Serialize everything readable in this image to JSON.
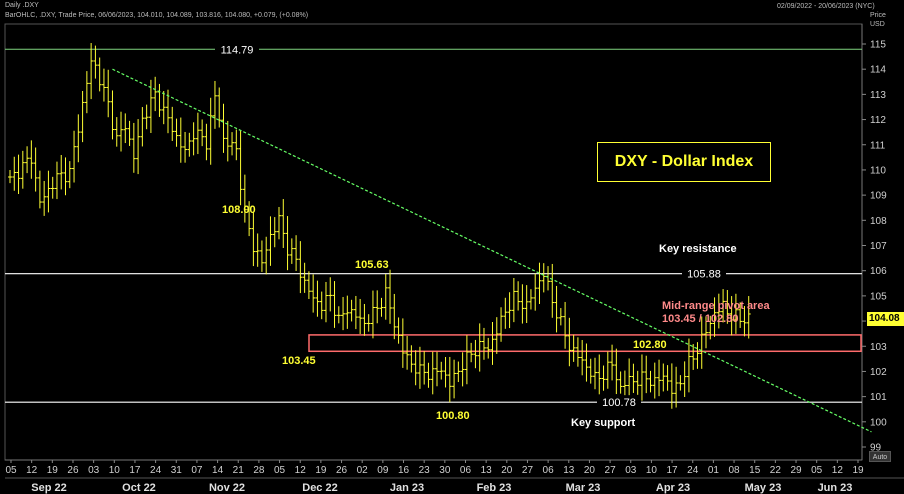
{
  "header": {
    "chart_label": "Daily .DXY",
    "study_line": "BarOHLC, .DXY, Trade Price, 06/06/2023, 104.010, 104.089, 103.816, 104.080, +0.079, (+0.08%)",
    "date_range": "02/09/2022 - 20/06/2023 (NYC)",
    "price_label": "Price",
    "currency_label": "USD",
    "auto_button": "Auto",
    "last_price": "104.08"
  },
  "chart_data": {
    "type": "ohlc",
    "title": "DXY - Dollar Index",
    "ylim": [
      98.5,
      115.5
    ],
    "y_ticks": [
      99,
      100,
      101,
      102,
      103,
      104,
      105,
      106,
      107,
      108,
      109,
      110,
      111,
      112,
      113,
      114,
      115
    ],
    "x_ticks": [
      "05",
      "12",
      "19",
      "26",
      "03",
      "10",
      "17",
      "24",
      "31",
      "07",
      "14",
      "21",
      "28",
      "05",
      "12",
      "19",
      "26",
      "02",
      "09",
      "16",
      "23",
      "30",
      "06",
      "13",
      "20",
      "27",
      "06",
      "13",
      "20",
      "27",
      "03",
      "10",
      "17",
      "24",
      "01",
      "08",
      "15",
      "22",
      "29",
      "05",
      "12",
      "19"
    ],
    "months": [
      "Sep 22",
      "Oct 22",
      "Nov 22",
      "Dec 22",
      "Jan 23",
      "Feb 23",
      "Mar 23",
      "Apr 23",
      "May 23",
      "Jun 23"
    ],
    "closes_anchor": [
      [
        0,
        109.6
      ],
      [
        5,
        110.5
      ],
      [
        7,
        108.7
      ],
      [
        11,
        109.7
      ],
      [
        14,
        109.9
      ],
      [
        17,
        112.6
      ],
      [
        19,
        114.3
      ],
      [
        20,
        114.1
      ],
      [
        23,
        112.6
      ],
      [
        25,
        111.2
      ],
      [
        27,
        111.8
      ],
      [
        29,
        110.5
      ],
      [
        31,
        112.0
      ],
      [
        34,
        113.0
      ],
      [
        37,
        112.0
      ],
      [
        39,
        111.3
      ],
      [
        41,
        110.7
      ],
      [
        43,
        111.5
      ],
      [
        46,
        111.1
      ],
      [
        48,
        112.9
      ],
      [
        50,
        111.2
      ],
      [
        53,
        110.8
      ],
      [
        55,
        108.2
      ],
      [
        57,
        107.0
      ],
      [
        59,
        106.3
      ],
      [
        61,
        107.4
      ],
      [
        63,
        108.0
      ],
      [
        65,
        106.9
      ],
      [
        67,
        106.4
      ],
      [
        69,
        105.5
      ],
      [
        71,
        104.9
      ],
      [
        73,
        104.6
      ],
      [
        75,
        105.0
      ],
      [
        77,
        104.0
      ],
      [
        79,
        104.5
      ],
      [
        81,
        104.2
      ],
      [
        83,
        103.9
      ],
      [
        86,
        104.5
      ],
      [
        88,
        105.1
      ],
      [
        90,
        103.9
      ],
      [
        92,
        102.8
      ],
      [
        94,
        102.3
      ],
      [
        96,
        102.0
      ],
      [
        99,
        101.9
      ],
      [
        101,
        102.1
      ],
      [
        103,
        101.5
      ],
      [
        106,
        102.3
      ],
      [
        108,
        102.7
      ],
      [
        110,
        103.0
      ],
      [
        112,
        102.9
      ],
      [
        114,
        103.6
      ],
      [
        116,
        104.4
      ],
      [
        118,
        104.9
      ],
      [
        121,
        104.6
      ],
      [
        123,
        105.3
      ],
      [
        125,
        105.9
      ],
      [
        127,
        104.8
      ],
      [
        129,
        103.9
      ],
      [
        131,
        103.0
      ],
      [
        133,
        102.6
      ],
      [
        135,
        102.2
      ],
      [
        137,
        101.7
      ],
      [
        139,
        101.9
      ],
      [
        141,
        102.3
      ],
      [
        143,
        101.3
      ],
      [
        145,
        101.7
      ],
      [
        147,
        101.6
      ],
      [
        149,
        101.8
      ],
      [
        151,
        101.5
      ],
      [
        153,
        101.9
      ],
      [
        155,
        101.2
      ],
      [
        157,
        101.6
      ],
      [
        159,
        102.3
      ],
      [
        161,
        102.9
      ],
      [
        163,
        103.6
      ],
      [
        165,
        104.3
      ],
      [
        167,
        104.6
      ],
      [
        169,
        104.2
      ],
      [
        171,
        104.1
      ],
      [
        173,
        104.08
      ]
    ],
    "annotations": {
      "high": "114.79",
      "resistance_label": "Key resistance",
      "resistance": "105.88",
      "support": "100.78",
      "support_label": "Key support",
      "label_108": "108.00",
      "label_10563": "105.63",
      "label_10345": "103.45",
      "label_10080": "100.80",
      "label_10280": "102.80",
      "pivot_label": "Mid-range pivot area",
      "pivot_range": "103.45 / 102.80"
    },
    "levels": {
      "high": 114.79,
      "resistance": 105.88,
      "support": 100.78,
      "pivot_top": 103.45,
      "pivot_bottom": 102.8
    },
    "trendline": {
      "from": [
        24,
        114.0
      ],
      "to": [
        187,
        99.6
      ]
    },
    "colors": {
      "bars": "#ffff33",
      "high_line": "#7fd47f",
      "level_line": "#ffffff",
      "trend": "#66ff66",
      "pivot_box": "#ff6b6b"
    }
  }
}
